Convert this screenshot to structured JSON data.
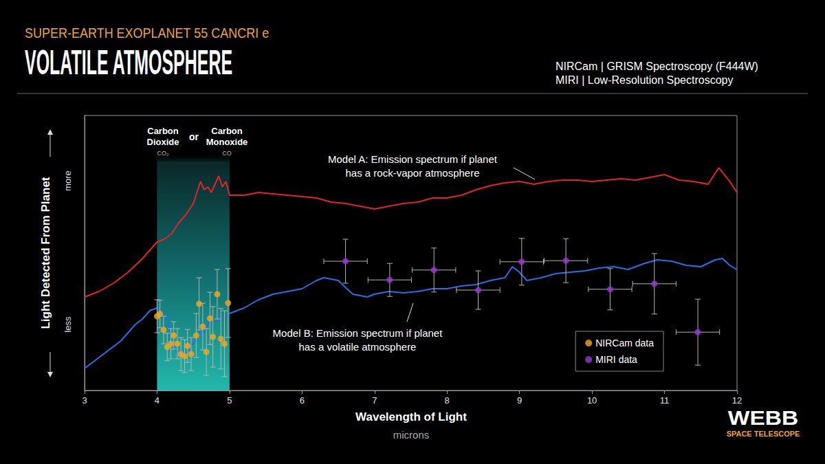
{
  "chart_data": {
    "type": "line",
    "subtitle": "SUPER-EARTH EXOPLANET 55 CANCRI e",
    "title": "VOLATILE ATMOSPHERE",
    "instruments": [
      "NIRCam | GRISM Spectroscopy (F444W)",
      "MIRI | Low-Resolution Spectroscopy"
    ],
    "xlabel": "Wavelength of Light",
    "xunit": "microns",
    "ylabel": "Light Detected From Planet",
    "ylabel_high": "more",
    "ylabel_low": "less",
    "xlim": [
      3,
      12
    ],
    "xticks": [
      3,
      4,
      5,
      6,
      7,
      8,
      9,
      10,
      11,
      12
    ],
    "ylim": [
      0,
      100
    ],
    "grid": false,
    "legend": "lower right",
    "tick_labels": "x",
    "band": {
      "range": [
        4,
        5
      ],
      "labels": [
        "Carbon\nDioxide",
        "Carbon\nMonoxide"
      ],
      "formulas": [
        "CO₂",
        "CO"
      ],
      "joiner": "or"
    },
    "branding": {
      "logo": "WEBB",
      "tagline": "SPACE TELESCOPE"
    },
    "series": [
      {
        "type": "line",
        "color": "#e3242b",
        "label": "Model A: Emission spectrum if planet\nhas a rock-vapor atmosphere",
        "x": [
          3.0,
          3.2,
          3.4,
          3.6,
          3.8,
          4.0,
          4.1,
          4.2,
          4.3,
          4.4,
          4.5,
          4.6,
          4.65,
          4.7,
          4.75,
          4.8,
          4.85,
          4.9,
          4.95,
          5.0,
          5.2,
          5.4,
          5.6,
          5.8,
          6.0,
          6.2,
          6.4,
          6.6,
          6.8,
          7.0,
          7.2,
          7.4,
          7.6,
          7.8,
          8.0,
          8.2,
          8.4,
          8.6,
          8.8,
          9.0,
          9.2,
          9.4,
          9.6,
          9.8,
          10.0,
          10.2,
          10.4,
          10.6,
          10.8,
          11.0,
          11.2,
          11.4,
          11.6,
          11.75,
          11.9,
          12.0
        ],
        "values": [
          34,
          36,
          39,
          43,
          48,
          54,
          55,
          57,
          61,
          64,
          68,
          76,
          73,
          74,
          72,
          75,
          78,
          74,
          76,
          71,
          71,
          72,
          71.5,
          71,
          70.5,
          70,
          68.5,
          68,
          67,
          66,
          67,
          68,
          68.5,
          70,
          70,
          71,
          73,
          74.5,
          75.5,
          76,
          75,
          76,
          76.5,
          76.5,
          76,
          76.5,
          77,
          76.5,
          77.5,
          78.5,
          76.5,
          76,
          75,
          81,
          76,
          72
        ]
      },
      {
        "type": "line",
        "color": "#2471e6",
        "label": "Model B: Emission spectrum if planet\nhas a volatile atmosphere",
        "x": [
          3.0,
          3.1,
          3.2,
          3.3,
          3.4,
          3.5,
          3.6,
          3.7,
          3.8,
          3.9,
          4.0,
          4.05,
          4.1,
          4.15,
          4.2,
          4.25,
          4.3,
          4.35,
          4.4,
          4.45,
          4.5,
          4.55,
          4.6,
          4.65,
          4.7,
          4.75,
          4.8,
          4.85,
          4.9,
          5.0,
          5.2,
          5.4,
          5.6,
          5.8,
          6.0,
          6.2,
          6.3,
          6.5,
          6.7,
          6.9,
          7.0,
          7.2,
          7.4,
          7.6,
          7.8,
          8.0,
          8.2,
          8.4,
          8.6,
          8.8,
          8.9,
          9.0,
          9.1,
          9.3,
          9.5,
          9.7,
          9.9,
          10.1,
          10.3,
          10.5,
          10.7,
          10.9,
          11.1,
          11.3,
          11.5,
          11.7,
          11.8,
          11.9,
          12.0
        ],
        "values": [
          8,
          10,
          12,
          14,
          16,
          18,
          21,
          24,
          26,
          29,
          30,
          29,
          28,
          26,
          17,
          15,
          13,
          14,
          13,
          16,
          17,
          19,
          22,
          21,
          24,
          26,
          25,
          27,
          26,
          28,
          30,
          33,
          35,
          36,
          37,
          40,
          41,
          40,
          35,
          34,
          35,
          36,
          35.5,
          36,
          37,
          37,
          38,
          38.5,
          40,
          41,
          45,
          43,
          40,
          41,
          42.5,
          43,
          43.5,
          44.5,
          45,
          44,
          46,
          47.5,
          47,
          45.5,
          45,
          47.5,
          48,
          45.5,
          44
        ]
      },
      {
        "type": "scatter",
        "name": "NIRCam data",
        "color": "#f5a81c",
        "marker": "circle",
        "x": [
          4.0,
          4.04,
          4.09,
          4.14,
          4.19,
          4.23,
          4.28,
          4.33,
          4.38,
          4.42,
          4.47,
          4.54,
          4.58,
          4.63,
          4.68,
          4.73,
          4.77,
          4.83,
          4.88,
          4.93,
          4.98
        ],
        "values": [
          27,
          27.8,
          22,
          15.8,
          17,
          20,
          17,
          13.2,
          12.5,
          16.2,
          13.2,
          20,
          31.5,
          23.2,
          14,
          26.2,
          19.5,
          35,
          18.8,
          17,
          31.8
        ],
        "y_error": [
          6,
          5,
          5,
          5,
          5.5,
          5,
          5.5,
          6,
          6,
          6,
          6,
          8,
          9.5,
          8.5,
          8.5,
          9.5,
          11,
          9,
          11,
          12,
          12.5
        ]
      },
      {
        "type": "scatter",
        "name": "MIRI data",
        "color": "#9a36d6",
        "marker": "circle",
        "x": [
          6.6,
          7.21,
          7.82,
          8.43,
          9.03,
          9.64,
          10.25,
          10.86,
          11.46
        ],
        "values": [
          47,
          40.2,
          43.8,
          36.5,
          46.8,
          47.2,
          36.8,
          38.8,
          21.2
        ],
        "y_error": [
          8,
          6,
          8,
          7,
          8.5,
          8,
          7.5,
          11,
          12
        ],
        "x_error": [
          0.3,
          0.3,
          0.3,
          0.3,
          0.3,
          0.3,
          0.3,
          0.3,
          0.3
        ]
      }
    ]
  }
}
